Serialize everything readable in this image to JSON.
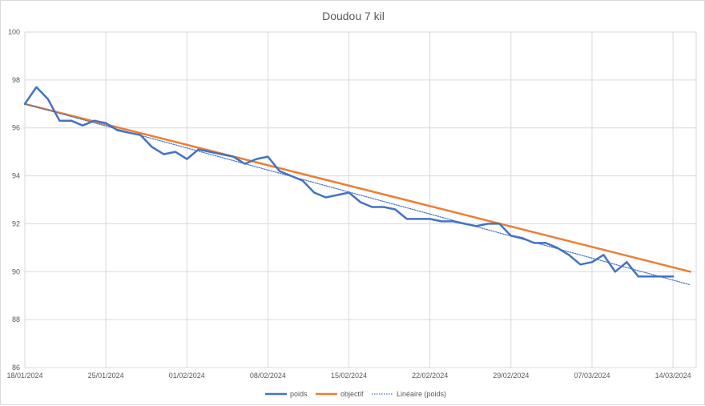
{
  "chart_data": {
    "type": "line",
    "title": "Doudou 7 kil",
    "xlabel": "",
    "ylabel": "",
    "ylim": [
      86,
      100
    ],
    "yticks": [
      86,
      88,
      90,
      92,
      94,
      96,
      98,
      100
    ],
    "grid": true,
    "legend_position": "bottom",
    "x_start": "2024-01-18",
    "x_end": "2024-03-14",
    "x_ticks": [
      {
        "day": 0,
        "label": "18/01/2024"
      },
      {
        "day": 7,
        "label": "25/01/2024"
      },
      {
        "day": 14,
        "label": "01/02/2024"
      },
      {
        "day": 21,
        "label": "08/02/2024"
      },
      {
        "day": 28,
        "label": "15/02/2024"
      },
      {
        "day": 35,
        "label": "22/02/2024"
      },
      {
        "day": 42,
        "label": "29/02/2024"
      },
      {
        "day": 49,
        "label": "07/03/2024"
      },
      {
        "day": 56,
        "label": "14/03/2024"
      }
    ],
    "series": [
      {
        "name": "poids",
        "color": "#4472C4",
        "style": "solid",
        "points": [
          [
            0,
            97.0
          ],
          [
            1,
            97.7
          ],
          [
            2,
            97.2
          ],
          [
            3,
            96.3
          ],
          [
            4,
            96.3
          ],
          [
            5,
            96.1
          ],
          [
            6,
            96.3
          ],
          [
            7,
            96.2
          ],
          [
            8,
            95.9
          ],
          [
            9,
            95.8
          ],
          [
            10,
            95.7
          ],
          [
            11,
            95.2
          ],
          [
            12,
            94.9
          ],
          [
            13,
            95.0
          ],
          [
            14,
            94.7
          ],
          [
            15,
            95.1
          ],
          [
            16,
            95.0
          ],
          [
            17,
            94.9
          ],
          [
            18,
            94.8
          ],
          [
            19,
            94.5
          ],
          [
            20,
            94.7
          ],
          [
            21,
            94.8
          ],
          [
            22,
            94.2
          ],
          [
            23,
            94.0
          ],
          [
            24,
            93.8
          ],
          [
            25,
            93.3
          ],
          [
            26,
            93.1
          ],
          [
            27,
            93.2
          ],
          [
            28,
            93.3
          ],
          [
            29,
            92.9
          ],
          [
            30,
            92.7
          ],
          [
            31,
            92.7
          ],
          [
            32,
            92.6
          ],
          [
            33,
            92.2
          ],
          [
            34,
            92.2
          ],
          [
            35,
            92.2
          ],
          [
            36,
            92.1
          ],
          [
            37,
            92.1
          ],
          [
            38,
            92.0
          ],
          [
            39,
            91.9
          ],
          [
            40,
            92.0
          ],
          [
            41,
            92.0
          ],
          [
            42,
            91.5
          ],
          [
            43,
            91.4
          ],
          [
            44,
            91.2
          ],
          [
            45,
            91.2
          ],
          [
            46,
            91.0
          ],
          [
            47,
            90.7
          ],
          [
            48,
            90.3
          ],
          [
            49,
            90.4
          ],
          [
            50,
            90.7
          ],
          [
            51,
            90.0
          ],
          [
            52,
            90.4
          ],
          [
            53,
            89.8
          ],
          [
            54,
            89.8
          ],
          [
            55,
            89.8
          ],
          [
            56,
            89.8
          ]
        ]
      },
      {
        "name": "objectif",
        "color": "#ED7D31",
        "style": "solid",
        "points": [
          [
            0,
            97.0
          ],
          [
            57.5,
            90.0
          ]
        ]
      },
      {
        "name": "Linéaire (poids)",
        "color": "#4472C4",
        "style": "dotted",
        "points": [
          [
            0,
            97.0
          ],
          [
            57.5,
            89.45
          ]
        ]
      }
    ]
  }
}
